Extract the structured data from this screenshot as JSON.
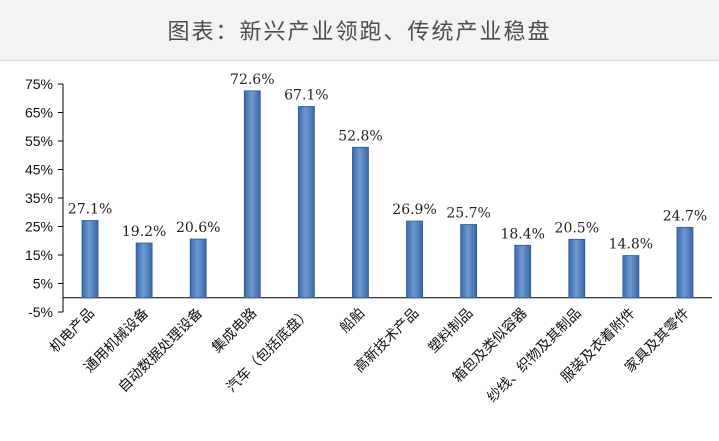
{
  "chart_data": {
    "type": "bar",
    "title": "图表：新兴产业领跑、传统产业稳盘",
    "categories": [
      "机电产品",
      "通用机械设备",
      "自动数据处理设备",
      "集成电路",
      "汽车（包括底盘）",
      "船舶",
      "高新技术产品",
      "塑料制品",
      "箱包及类似容器",
      "纱线、织物及其制品",
      "服装及衣着附件",
      "家具及其零件"
    ],
    "values": [
      27.1,
      19.2,
      20.6,
      72.6,
      67.1,
      52.8,
      26.9,
      25.7,
      18.4,
      20.5,
      14.8,
      24.7
    ],
    "data_labels": [
      "27.1%",
      "19.2%",
      "20.6%",
      "72.6%",
      "67.1%",
      "52.8%",
      "26.9%",
      "25.7%",
      "18.4%",
      "20.5%",
      "14.8%",
      "24.7%"
    ],
    "yticks": [
      -5,
      5,
      15,
      25,
      35,
      45,
      55,
      65,
      75
    ],
    "ytick_labels": [
      "-5%",
      "5%",
      "15%",
      "25%",
      "35%",
      "45%",
      "55%",
      "65%",
      "75%"
    ],
    "ylim": [
      -5,
      75
    ],
    "grid": false,
    "legend": "none",
    "bar_color": "#4f7fbf",
    "bar_edge_color": "#2a5a96"
  }
}
